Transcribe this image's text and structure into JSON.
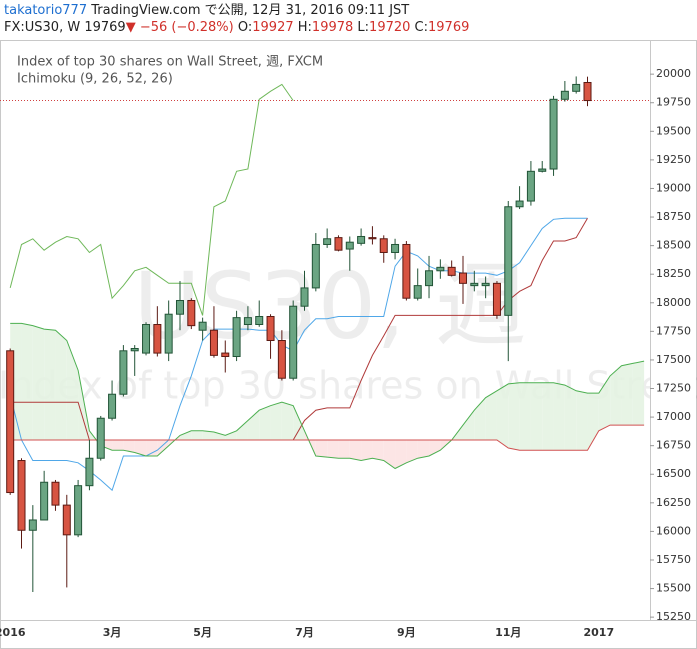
{
  "chart_data": {
    "type": "candlestick",
    "header": {
      "author": "takatorio777",
      "published": "TradingView.com で公開, 12月 31, 2016 09:11 JST",
      "symbol": "FX:US30, W",
      "change": "▼ −56 (−0.28%)",
      "ohlc_labels": [
        "O:",
        "H:",
        "L:",
        "C:"
      ]
    },
    "legend": [
      "Index of top 30 shares on Wall Street, 週, FXCM",
      "Ichimoku (9, 26, 52, 26)"
    ],
    "watermark": [
      "US30, 週",
      "Index of top 30 shares on Wall Street"
    ],
    "categories": [
      "2016",
      null,
      null,
      null,
      null,
      null,
      null,
      null,
      null,
      "3月",
      null,
      null,
      null,
      null,
      null,
      null,
      null,
      "5月",
      null,
      null,
      null,
      null,
      null,
      null,
      null,
      null,
      "7月",
      null,
      null,
      null,
      null,
      null,
      null,
      null,
      null,
      "9月",
      null,
      null,
      null,
      null,
      null,
      null,
      null,
      null,
      "11月",
      null,
      null,
      null,
      null,
      null,
      null,
      null,
      "2017",
      null,
      null,
      null,
      null
    ],
    "open": [
      17580,
      16620,
      16010,
      16100,
      16430,
      16230,
      15970,
      16400,
      16640,
      16990,
      17200,
      17580,
      17560,
      17810,
      17560,
      17900,
      18020,
      17760,
      17760,
      17560,
      17530,
      17810,
      17810,
      17880,
      17670,
      17340,
      17970,
      18130,
      18510,
      18570,
      18470,
      18520,
      18570,
      18560,
      18440,
      18510,
      18040,
      18150,
      18280,
      18310,
      18260,
      18150,
      18150,
      18170,
      17890,
      18840,
      18890,
      19150,
      19170,
      19780,
      19850,
      19927,
      null,
      null,
      null,
      null,
      null
    ],
    "high": [
      17600,
      16640,
      16230,
      16530,
      16450,
      16320,
      16450,
      16800,
      17010,
      17320,
      17630,
      17630,
      17830,
      17970,
      18020,
      18190,
      18040,
      17870,
      17970,
      17670,
      17930,
      17970,
      18020,
      17900,
      17760,
      18020,
      18280,
      18610,
      18650,
      18590,
      18580,
      18650,
      18670,
      18590,
      18560,
      18540,
      18300,
      18410,
      18380,
      18370,
      18410,
      18280,
      18230,
      18190,
      18890,
      19020,
      19240,
      19240,
      19810,
      19940,
      19980,
      19978,
      null,
      null,
      null,
      null,
      null
    ],
    "low": [
      16320,
      15850,
      15470,
      16100,
      16180,
      15510,
      15950,
      16360,
      16620,
      16970,
      17180,
      17360,
      17540,
      17530,
      17490,
      17760,
      17770,
      17670,
      17520,
      17390,
      17490,
      17760,
      17790,
      17510,
      17320,
      17320,
      17930,
      18100,
      18480,
      18450,
      18280,
      18500,
      18510,
      18350,
      18380,
      18020,
      18020,
      18040,
      18210,
      18230,
      17990,
      18100,
      18040,
      17860,
      17490,
      18820,
      18850,
      19140,
      19110,
      19760,
      19830,
      19720,
      null,
      null,
      null,
      null,
      null
    ],
    "close": [
      16340,
      16010,
      16100,
      16430,
      16230,
      15970,
      16400,
      16640,
      16990,
      17200,
      17580,
      17600,
      17810,
      17560,
      17900,
      18020,
      17800,
      17830,
      17540,
      17530,
      17870,
      17870,
      17880,
      17670,
      17340,
      17970,
      18130,
      18510,
      18560,
      18460,
      18530,
      18580,
      18560,
      18440,
      18510,
      18040,
      18150,
      18280,
      18310,
      18240,
      18170,
      18170,
      18170,
      17890,
      18840,
      18890,
      19150,
      19170,
      19780,
      19850,
      19910,
      19769,
      null,
      null,
      null,
      null,
      null
    ],
    "up_color": "#6ba583",
    "up_border": "#225437",
    "down_color": "#d75442",
    "down_border": "#5b1a13",
    "lines": [
      {
        "color": "#4fa7e8",
        "values": [
          17190,
          16800,
          16620,
          16620,
          16620,
          16620,
          16600,
          16530,
          16450,
          16360,
          16660,
          16660,
          16660,
          16710,
          16800,
          17100,
          17360,
          17670,
          17770,
          17770,
          17770,
          17770,
          17760,
          17760,
          17630,
          17580,
          17760,
          17860,
          17860,
          17880,
          17880,
          17880,
          17880,
          17880,
          18320,
          18450,
          18410,
          18320,
          18280,
          18280,
          18260,
          18260,
          18260,
          18240,
          18280,
          18350,
          18500,
          18650,
          18730,
          18740,
          18740,
          18740,
          null,
          null,
          null,
          null,
          null
        ]
      },
      {
        "color": "#b03a3a",
        "values": [
          17130,
          17130,
          17130,
          17130,
          17130,
          17130,
          17130,
          16800,
          16800,
          16800,
          16800,
          16800,
          16800,
          16800,
          16800,
          16800,
          16800,
          16800,
          16800,
          16800,
          16800,
          16800,
          16800,
          16800,
          16800,
          16800,
          16970,
          17060,
          17080,
          17080,
          17080,
          17320,
          17540,
          17710,
          17890,
          17890,
          17890,
          17890,
          17890,
          17890,
          17890,
          17890,
          17890,
          17890,
          18020,
          18100,
          18150,
          18370,
          18540,
          18540,
          18570,
          18740,
          null,
          null,
          null,
          null,
          null
        ]
      },
      {
        "color": "#6fb85a",
        "values": [
          18130,
          18510,
          18560,
          18460,
          18530,
          18580,
          18560,
          18440,
          18510,
          18040,
          18150,
          18280,
          18310,
          18240,
          18170,
          18170,
          18170,
          17890,
          18840,
          18890,
          19150,
          19170,
          19780,
          19850,
          19910,
          19769,
          null,
          null,
          null,
          null,
          null,
          null,
          null,
          null,
          null,
          null,
          null,
          null,
          null,
          null,
          null,
          null,
          null,
          null,
          null,
          null,
          null,
          null,
          null,
          null,
          null,
          null,
          null,
          null,
          null,
          null,
          null
        ]
      },
      {
        "color": "#4caf50",
        "values": [
          17820,
          17820,
          17800,
          17770,
          17760,
          17670,
          17410,
          16880,
          16750,
          16710,
          16710,
          16690,
          16660,
          16660,
          16750,
          16840,
          16880,
          16880,
          16870,
          16840,
          16880,
          16970,
          17060,
          17100,
          17130,
          17100,
          16880,
          16660,
          16650,
          16640,
          16640,
          16620,
          16640,
          16620,
          16550,
          16600,
          16640,
          16660,
          16710,
          16800,
          16930,
          17060,
          17170,
          17230,
          17290,
          17300,
          17300,
          17300,
          17300,
          17280,
          17230,
          17210,
          17210,
          17360,
          17450,
          17470,
          17490
        ]
      },
      {
        "color": "#d05050",
        "values": [
          16800,
          16800,
          16800,
          16800,
          16800,
          16800,
          16800,
          16800,
          16800,
          16800,
          16800,
          16800,
          16800,
          16800,
          16800,
          16800,
          16800,
          16800,
          16800,
          16800,
          16800,
          16800,
          16800,
          16800,
          16800,
          16800,
          16800,
          16800,
          16800,
          16800,
          16800,
          16800,
          16800,
          16800,
          16800,
          16800,
          16800,
          16800,
          16800,
          16800,
          16800,
          16800,
          16800,
          16800,
          16730,
          16710,
          16710,
          16710,
          16710,
          16710,
          16710,
          16710,
          16880,
          16930,
          16930,
          16930,
          16930
        ]
      }
    ],
    "cloud_colors": [
      "#e3f2e1",
      "#fbe1e1"
    ],
    "last_price_color": "#d04040",
    "ylim": [
      15225,
      20290
    ],
    "yticks": [
      15250,
      15500,
      15750,
      16000,
      16250,
      16500,
      16750,
      17000,
      17250,
      17500,
      17750,
      18000,
      18250,
      18500,
      18750,
      19000,
      19250,
      19500,
      19750,
      20000
    ]
  }
}
